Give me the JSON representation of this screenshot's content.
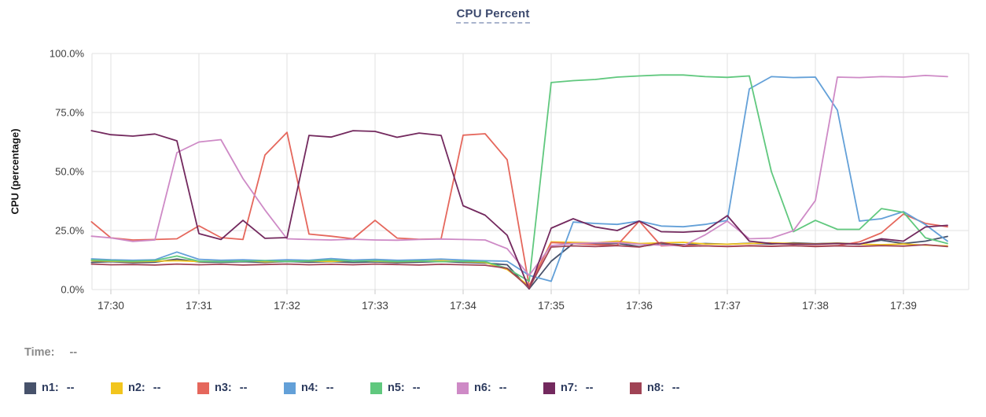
{
  "title": {
    "text": "CPU Percent"
  },
  "legend": {
    "time_label": "Time:",
    "time_value": "--",
    "items": [
      {
        "name": "n1",
        "label": "n1:",
        "value": "--",
        "color": "#47526b"
      },
      {
        "name": "n2",
        "label": "n2:",
        "value": "--",
        "color": "#f2c51d"
      },
      {
        "name": "n3",
        "label": "n3:",
        "value": "--",
        "color": "#e5675c"
      },
      {
        "name": "n4",
        "label": "n4:",
        "value": "--",
        "color": "#63a0d8"
      },
      {
        "name": "n5",
        "label": "n5:",
        "value": "--",
        "color": "#60c87e"
      },
      {
        "name": "n6",
        "label": "n6:",
        "value": "--",
        "color": "#ce8ac6"
      },
      {
        "name": "n7",
        "label": "n7:",
        "value": "--",
        "color": "#73295e"
      },
      {
        "name": "n8",
        "label": "n8:",
        "value": "--",
        "color": "#a04355"
      }
    ]
  },
  "chart_data": {
    "type": "line",
    "title": "CPU Percent",
    "xlabel": "",
    "ylabel": "CPU (percentage)",
    "ylim": [
      0,
      100
    ],
    "grid": true,
    "legend_position": "bottom",
    "x_unit": "clock time HH:MM",
    "y_ticks": [
      {
        "v": 0,
        "label": "0.0%"
      },
      {
        "v": 25,
        "label": "25.0%"
      },
      {
        "v": 50,
        "label": "50.0%"
      },
      {
        "v": 75,
        "label": "75.0%"
      },
      {
        "v": 100,
        "label": "100.0%"
      }
    ],
    "x_ticks": [
      {
        "t": 30,
        "label": "17:30"
      },
      {
        "t": 31,
        "label": "17:31"
      },
      {
        "t": 32,
        "label": "17:32"
      },
      {
        "t": 33,
        "label": "17:33"
      },
      {
        "t": 34,
        "label": "17:34"
      },
      {
        "t": 35,
        "label": "17:35"
      },
      {
        "t": 36,
        "label": "17:36"
      },
      {
        "t": 37,
        "label": "17:37"
      },
      {
        "t": 38,
        "label": "17:38"
      },
      {
        "t": 39,
        "label": "17:39"
      }
    ],
    "t": [
      29.78,
      30,
      30.25,
      30.5,
      30.75,
      31,
      31.25,
      31.5,
      31.75,
      32,
      32.25,
      32.5,
      32.75,
      33,
      33.25,
      33.5,
      33.75,
      34,
      34.25,
      34.5,
      34.75,
      35,
      35.25,
      35.5,
      35.75,
      36,
      36.25,
      36.5,
      36.75,
      37,
      37.25,
      37.5,
      37.75,
      38,
      38.25,
      38.5,
      38.75,
      39,
      39.25,
      39.5
    ],
    "series": [
      {
        "name": "n1",
        "color": "#47526b",
        "values": [
          11.5,
          11.8,
          11.4,
          11.6,
          12.9,
          11.7,
          11.5,
          11.8,
          11.5,
          11.9,
          11.6,
          11.8,
          11.5,
          11.7,
          11.4,
          11.6,
          11.9,
          11.5,
          11.2,
          10.5,
          0.3,
          12,
          19.5,
          19.2,
          19.6,
          18.2,
          19.4,
          19,
          19.5,
          19.2,
          19.6,
          19.3,
          19.8,
          19.4,
          19.7,
          19.3,
          20.9,
          19.5,
          20.5,
          22.5
        ]
      },
      {
        "name": "n2",
        "color": "#f2c51d",
        "values": [
          12.2,
          12,
          11.8,
          12,
          12.2,
          11.9,
          12,
          12.3,
          11.8,
          12,
          12.1,
          11.9,
          12.3,
          12,
          11.8,
          12,
          12.2,
          11.9,
          11.5,
          8.5,
          1.5,
          20.2,
          20,
          19.8,
          20.5,
          19.5,
          19.8,
          20,
          19.3,
          19.2,
          19.5,
          19.8,
          19.5,
          19.3,
          19.6,
          19.2,
          19,
          19.3,
          18.8,
          18.5
        ]
      },
      {
        "name": "n3",
        "color": "#e5675c",
        "values": [
          28.7,
          21.9,
          21,
          21.2,
          21.5,
          27,
          22,
          21.2,
          57,
          66.6,
          23.5,
          22.6,
          21.5,
          29.3,
          21.8,
          21.3,
          21.5,
          65.4,
          66,
          55,
          1.5,
          19.9,
          19.5,
          19,
          18.8,
          29,
          18.5,
          18.8,
          18.5,
          18.3,
          18.6,
          18.4,
          18.6,
          18.4,
          18.6,
          20.2,
          24,
          32,
          28,
          26.6
        ]
      },
      {
        "name": "n4",
        "color": "#63a0d8",
        "values": [
          13,
          12.6,
          12.4,
          12.6,
          15.9,
          12.8,
          12.4,
          12.6,
          12.3,
          12.6,
          12.4,
          13.1,
          12.5,
          12.8,
          12.4,
          12.6,
          12.9,
          12.5,
          12.2,
          12,
          6,
          3.5,
          28.6,
          28,
          27.6,
          29,
          26.9,
          26.6,
          27.6,
          29.3,
          85,
          90.2,
          89.8,
          90,
          76,
          29,
          30,
          33,
          27.5,
          20.5
        ]
      },
      {
        "name": "n5",
        "color": "#60c87e",
        "values": [
          12.5,
          12.2,
          12,
          12.3,
          14.2,
          12,
          11.8,
          12,
          12.2,
          11.9,
          12.1,
          12.5,
          12,
          12.2,
          11.9,
          12.1,
          11.8,
          12,
          11.8,
          9,
          3.5,
          87.7,
          88.5,
          89,
          90,
          90.5,
          90.9,
          90.9,
          90.2,
          89.9,
          90.5,
          50,
          24.5,
          29.3,
          25.5,
          25.5,
          34.3,
          32.7,
          21.9,
          19.5
        ]
      },
      {
        "name": "n6",
        "color": "#ce8ac6",
        "values": [
          22.6,
          21.9,
          20.4,
          21,
          58,
          62.5,
          63.5,
          47,
          33.7,
          21.5,
          21.2,
          21,
          21.3,
          21,
          20.9,
          21.2,
          21.4,
          21.2,
          21,
          17.3,
          6,
          18.6,
          19.5,
          19.8,
          19.9,
          19.2,
          18.8,
          18.5,
          23.2,
          29,
          21.5,
          21.8,
          24.9,
          37.7,
          90,
          89.8,
          90.2,
          90,
          90.7,
          90.2
        ]
      },
      {
        "name": "n7",
        "color": "#73295e",
        "values": [
          67.3,
          65.6,
          65,
          65.9,
          63,
          23.7,
          21.2,
          29.3,
          21.7,
          22,
          65.3,
          64.6,
          67.3,
          67,
          64.5,
          66.3,
          65.3,
          35.5,
          31.5,
          23,
          0.3,
          26,
          30,
          26.5,
          25,
          29,
          24.5,
          24.3,
          24.9,
          31.3,
          20.5,
          19.5,
          19.3,
          19.2,
          19.5,
          19.2,
          21.5,
          20.5,
          26.5,
          27.2
        ]
      },
      {
        "name": "n8",
        "color": "#a04355",
        "values": [
          10.8,
          10.5,
          10.6,
          10.4,
          10.8,
          10.5,
          10.7,
          10.4,
          10.6,
          10.8,
          10.5,
          10.7,
          10.5,
          10.8,
          10.6,
          10.4,
          10.7,
          10.5,
          10.3,
          9,
          0.7,
          18,
          18.5,
          18.2,
          18.6,
          18,
          19.9,
          18.3,
          18.5,
          18.2,
          18.5,
          18.3,
          18.6,
          18.2,
          18.5,
          18.3,
          18.6,
          18.4,
          19,
          18.2
        ]
      }
    ]
  }
}
